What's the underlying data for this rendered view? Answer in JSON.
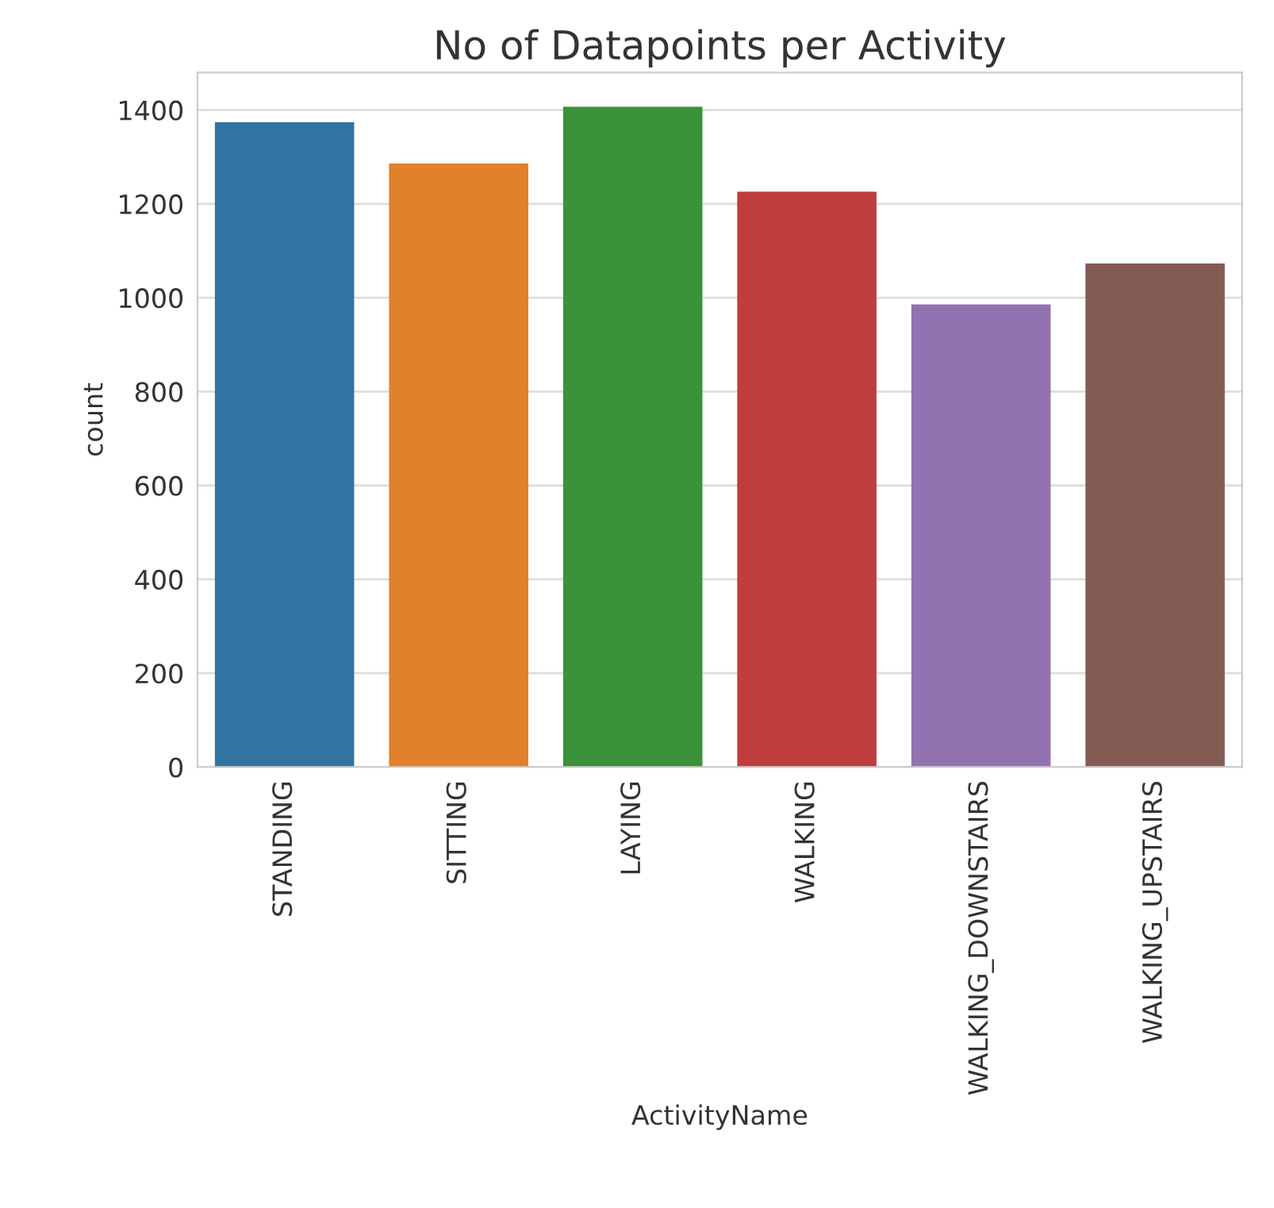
{
  "chart_data": {
    "type": "bar",
    "title": "No of Datapoints per Activity",
    "xlabel": "ActivityName",
    "ylabel": "count",
    "categories": [
      "STANDING",
      "SITTING",
      "LAYING",
      "WALKING",
      "WALKING_DOWNSTAIRS",
      "WALKING_UPSTAIRS"
    ],
    "values": [
      1374,
      1286,
      1407,
      1226,
      986,
      1073
    ],
    "colors": [
      "#3274a1",
      "#e1812c",
      "#3a923a",
      "#c03d3e",
      "#9372b2",
      "#845b53"
    ],
    "ylim": [
      0,
      1480
    ],
    "yticks": [
      0,
      200,
      400,
      600,
      800,
      1000,
      1200,
      1400
    ],
    "grid": "y"
  }
}
